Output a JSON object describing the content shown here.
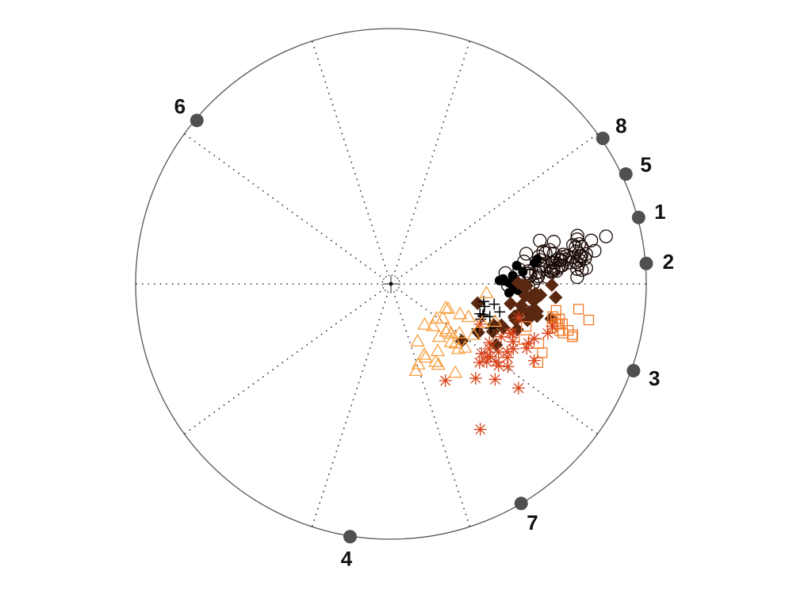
{
  "chart_data": {
    "type": "scatter",
    "title": "",
    "xlabel": "",
    "ylabel": "",
    "polar": true,
    "grid": true,
    "legend": "none",
    "xlim": [
      -1,
      1
    ],
    "ylim": [
      -1,
      1
    ],
    "colors": {
      "ring": "#555555",
      "grid": "#333333",
      "node": "#505050",
      "dark": "#1a0a05",
      "brown": "#5a2810",
      "red_orange": "#d9431a",
      "orange": "#f07a2a",
      "light_orange": "#f8a040",
      "black": "#000000"
    },
    "nodes": [
      {
        "label": "1",
        "x": 0.97,
        "y": 0.26
      },
      {
        "label": "2",
        "x": 1.0,
        "y": 0.08
      },
      {
        "label": "3",
        "x": 0.95,
        "y": -0.34
      },
      {
        "label": "4",
        "x": -0.16,
        "y": -0.99
      },
      {
        "label": "5",
        "x": 0.92,
        "y": 0.43
      },
      {
        "label": "6",
        "x": -0.76,
        "y": 0.64
      },
      {
        "label": "7",
        "x": 0.51,
        "y": -0.86
      },
      {
        "label": "8",
        "x": 0.83,
        "y": 0.57
      }
    ],
    "series": [
      {
        "marker": "circle-open",
        "color": "dark",
        "center": [
          0.65,
          0.09
        ],
        "spread": [
          0.09,
          0.04
        ],
        "count": 70
      },
      {
        "marker": "circle-filled",
        "color": "black",
        "center": [
          0.5,
          0.01
        ],
        "spread": [
          0.04,
          0.03
        ],
        "count": 14
      },
      {
        "marker": "diamond-filled",
        "color": "brown",
        "center": [
          0.52,
          -0.11
        ],
        "spread": [
          0.07,
          0.05
        ],
        "count": 35
      },
      {
        "marker": "plus",
        "color": "black",
        "center": [
          0.38,
          -0.13
        ],
        "spread": [
          0.03,
          0.04
        ],
        "count": 12
      },
      {
        "marker": "square-open",
        "color": "orange",
        "center": [
          0.63,
          -0.18
        ],
        "spread": [
          0.06,
          0.04
        ],
        "count": 20
      },
      {
        "marker": "asterisk",
        "color": "red_orange",
        "center": [
          0.45,
          -0.25
        ],
        "spread": [
          0.08,
          0.05
        ],
        "count": 30
      },
      {
        "marker": "triangle-open",
        "color": "light_orange",
        "center": [
          0.22,
          -0.22
        ],
        "spread": [
          0.08,
          0.06
        ],
        "count": 30
      }
    ],
    "outliers": [
      {
        "marker": "asterisk",
        "color": "red_orange",
        "x": 0.35,
        "y": -0.57
      }
    ]
  }
}
